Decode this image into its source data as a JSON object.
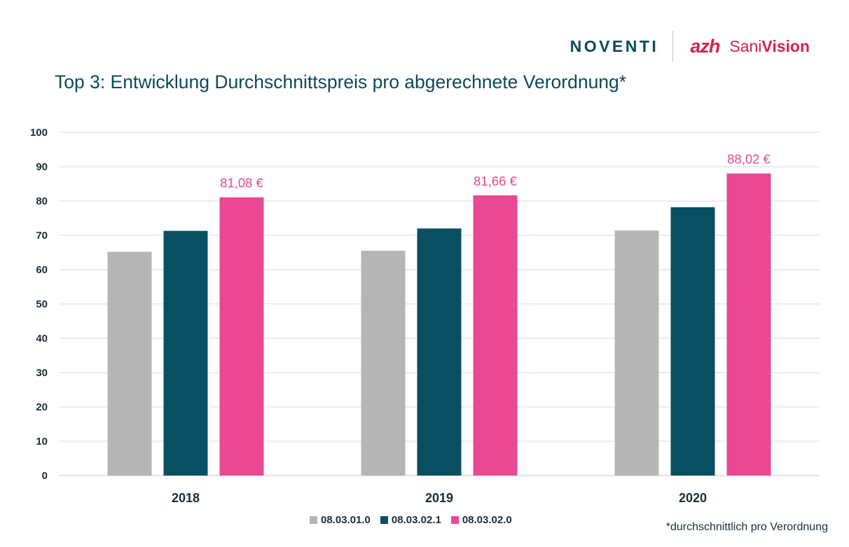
{
  "brand": {
    "noventi_logo": "NOVENTI",
    "azh_logo": "azh",
    "sanivision_logo_a": "Sani",
    "sanivision_logo_b": "Vision",
    "colors": {
      "navy": "#0b4a5f",
      "magenta": "#d6214f"
    }
  },
  "chart_data": {
    "type": "bar",
    "title": "Top 3: Entwicklung Durchschnittspreis pro abgerechnete Verordnung*",
    "categories": [
      "2018",
      "2019",
      "2020"
    ],
    "series": [
      {
        "name": "08.03.01.0",
        "color": "#b5b5b5",
        "values": [
          65.2,
          65.5,
          71.4
        ]
      },
      {
        "name": "08.03.02.1",
        "color": "#084f62",
        "values": [
          71.3,
          72.0,
          78.2
        ]
      },
      {
        "name": "08.03.02.0",
        "color": "#ea4893",
        "values": [
          81.08,
          81.66,
          88.02
        ],
        "labels": [
          "81,08 €",
          "81,66 €",
          "88,02 €"
        ]
      }
    ],
    "ylim": [
      0,
      100
    ],
    "yticks": [
      0,
      10,
      20,
      30,
      40,
      50,
      60,
      70,
      80,
      90,
      100
    ],
    "grid": true,
    "legend_position": "bottom",
    "xlabel": "",
    "ylabel": ""
  },
  "footnote": "*durchschnittlich pro Verordnung"
}
